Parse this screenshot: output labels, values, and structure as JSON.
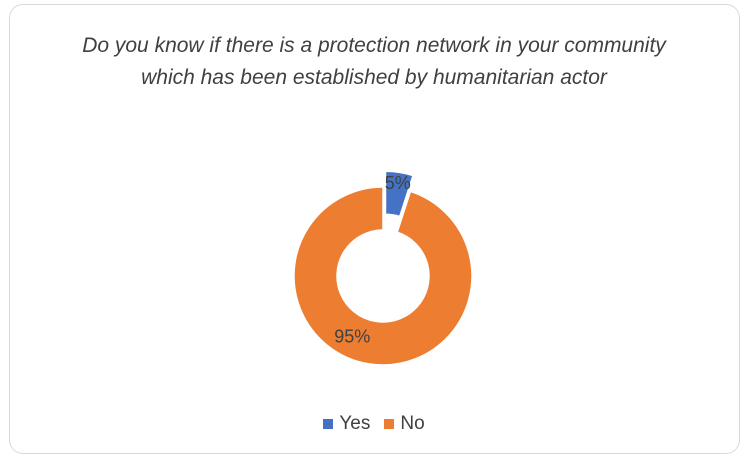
{
  "chart_data": {
    "type": "pie",
    "variant": "doughnut",
    "title": "Do you know if there is a protection network in your community which has been established by humanitarian actor",
    "categories": [
      "Yes",
      "No"
    ],
    "values": [
      5,
      95
    ],
    "data_labels": [
      "5%",
      "95%"
    ],
    "colors": [
      "#4472c4",
      "#ed7d31"
    ],
    "exploded": "Yes",
    "legend": "bottom"
  }
}
